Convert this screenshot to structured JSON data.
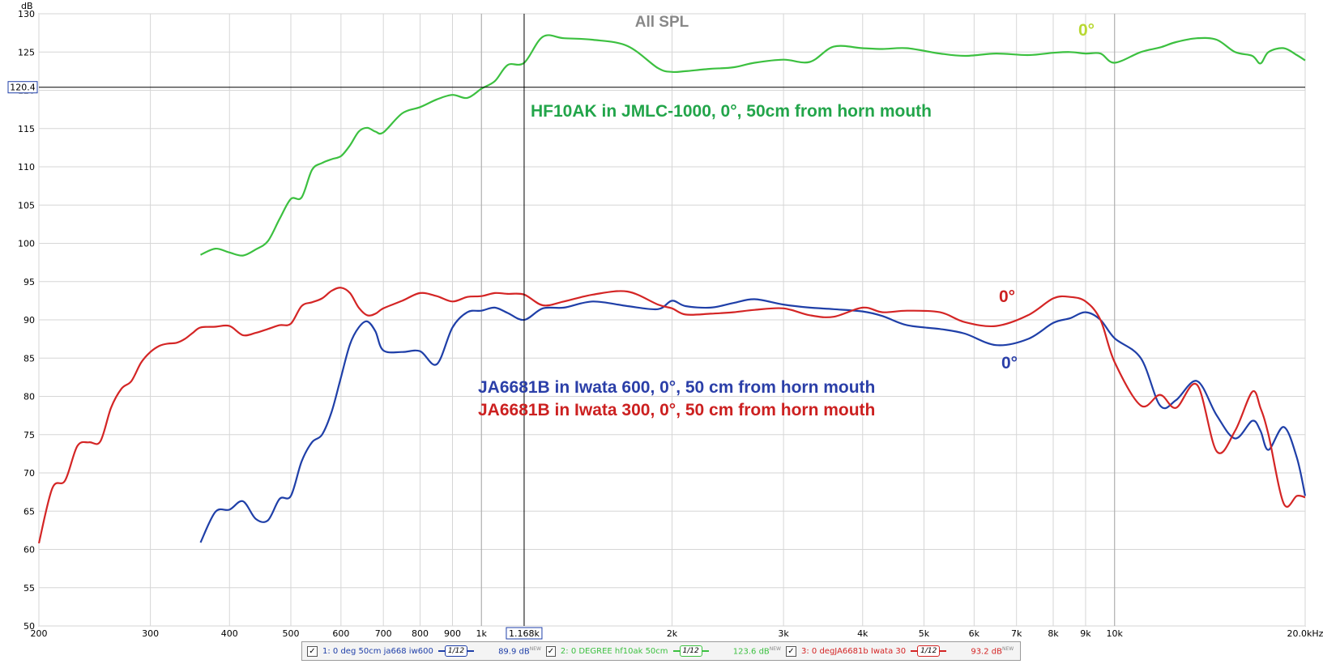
{
  "chart_data": {
    "type": "line",
    "title": "All SPL",
    "ylabel": "dB",
    "xunit": "Hz",
    "xscale": "log",
    "xlim": [
      200,
      20000
    ],
    "ylim": [
      50,
      130
    ],
    "x_ticks": [
      {
        "v": 200,
        "l": "200"
      },
      {
        "v": 300,
        "l": "300"
      },
      {
        "v": 400,
        "l": "400"
      },
      {
        "v": 500,
        "l": "500"
      },
      {
        "v": 600,
        "l": "600"
      },
      {
        "v": 700,
        "l": "700"
      },
      {
        "v": 800,
        "l": "800"
      },
      {
        "v": 900,
        "l": "900"
      },
      {
        "v": 1000,
        "l": "1k"
      },
      {
        "v": 2000,
        "l": "2k"
      },
      {
        "v": 3000,
        "l": "3k"
      },
      {
        "v": 4000,
        "l": "4k"
      },
      {
        "v": 5000,
        "l": "5k"
      },
      {
        "v": 6000,
        "l": "6k"
      },
      {
        "v": 7000,
        "l": "7k"
      },
      {
        "v": 8000,
        "l": "8k"
      },
      {
        "v": 9000,
        "l": "9k"
      },
      {
        "v": 10000,
        "l": "10k"
      },
      {
        "v": 20000,
        "l": "20.0kHz"
      }
    ],
    "y_ticks": [
      50,
      55,
      60,
      65,
      70,
      75,
      80,
      85,
      90,
      95,
      100,
      105,
      110,
      115,
      120,
      125,
      130
    ],
    "grid": true,
    "cursor": {
      "x": 1168,
      "x_label": "1.168k",
      "y": 120.4,
      "y_label": "120.4"
    },
    "series": [
      {
        "name": "2: 0 DEGREE hf10ak 50cm",
        "color": "#3cc040",
        "x": [
          360,
          380,
          400,
          420,
          440,
          460,
          480,
          500,
          520,
          540,
          560,
          580,
          600,
          620,
          640,
          660,
          680,
          700,
          750,
          800,
          850,
          900,
          950,
          1000,
          1050,
          1100,
          1168,
          1250,
          1350,
          1500,
          1700,
          1900,
          2000,
          2100,
          2300,
          2500,
          2700,
          3000,
          3300,
          3600,
          4000,
          4300,
          4700,
          5300,
          5800,
          6500,
          7300,
          8000,
          8500,
          9000,
          9500,
          10000,
          11000,
          11800,
          12500,
          13500,
          14500,
          15500,
          16500,
          17000,
          17500,
          18500,
          19400,
          20000
        ],
        "y": [
          98.5,
          99.3,
          98.8,
          98.4,
          99.2,
          100.3,
          103.2,
          105.8,
          106.0,
          109.6,
          110.5,
          111.0,
          111.4,
          112.8,
          114.6,
          115.1,
          114.6,
          114.5,
          117.0,
          117.8,
          118.8,
          119.4,
          119.0,
          120.2,
          121.2,
          123.3,
          123.6,
          127.0,
          126.8,
          126.6,
          125.8,
          122.9,
          122.4,
          122.5,
          122.8,
          123.0,
          123.6,
          124.0,
          123.7,
          125.7,
          125.5,
          125.4,
          125.5,
          124.8,
          124.5,
          124.8,
          124.6,
          124.9,
          125.0,
          124.8,
          124.8,
          123.6,
          125.0,
          125.6,
          126.3,
          126.8,
          126.6,
          125.0,
          124.5,
          123.5,
          125.0,
          125.5,
          124.6,
          123.9
        ]
      },
      {
        "name": "1: 0 deg 50cm ja668 iw600",
        "color": "#1f3fa8",
        "x": [
          360,
          380,
          400,
          420,
          440,
          460,
          480,
          500,
          520,
          540,
          560,
          580,
          600,
          620,
          640,
          660,
          680,
          700,
          750,
          800,
          850,
          900,
          950,
          1000,
          1050,
          1100,
          1168,
          1250,
          1350,
          1500,
          1700,
          1900,
          2000,
          2100,
          2300,
          2500,
          2700,
          3000,
          3300,
          3600,
          4000,
          4300,
          4700,
          5300,
          5800,
          6500,
          7300,
          8000,
          8500,
          9000,
          9500,
          10000,
          11000,
          11800,
          12500,
          13500,
          14500,
          15500,
          16500,
          17000,
          17500,
          18500,
          19400,
          20000
        ],
        "y": [
          60.9,
          64.9,
          65.2,
          66.3,
          64.0,
          63.8,
          66.6,
          67.0,
          71.5,
          74.0,
          75.0,
          78.0,
          82.5,
          86.8,
          89.0,
          89.8,
          88.5,
          86.0,
          85.8,
          85.9,
          84.2,
          89.0,
          91.0,
          91.2,
          91.6,
          90.9,
          90.0,
          91.5,
          91.6,
          92.4,
          91.8,
          91.4,
          92.5,
          91.8,
          91.6,
          92.2,
          92.7,
          92.0,
          91.6,
          91.4,
          91.1,
          90.5,
          89.3,
          88.8,
          88.2,
          86.7,
          87.5,
          89.6,
          90.2,
          91.0,
          90.0,
          87.6,
          85.0,
          78.8,
          79.5,
          82.0,
          77.5,
          74.5,
          76.8,
          75.5,
          73.0,
          76.0,
          72.0,
          67.0
        ]
      },
      {
        "name": "3: 0 degJA6681b Iwata 30",
        "color": "#d42525",
        "x": [
          200,
          210,
          220,
          230,
          240,
          250,
          260,
          270,
          280,
          290,
          300,
          310,
          320,
          330,
          340,
          350,
          360,
          380,
          400,
          420,
          440,
          460,
          480,
          500,
          520,
          540,
          560,
          580,
          600,
          620,
          640,
          660,
          680,
          700,
          750,
          800,
          850,
          900,
          950,
          1000,
          1050,
          1100,
          1168,
          1250,
          1350,
          1500,
          1700,
          1900,
          2000,
          2100,
          2300,
          2500,
          2700,
          3000,
          3300,
          3600,
          4000,
          4300,
          4700,
          5300,
          5800,
          6500,
          7300,
          8000,
          8500,
          9000,
          9500,
          10000,
          11000,
          11800,
          12500,
          13500,
          14500,
          15500,
          16500,
          17000,
          17500,
          18500,
          19400,
          20000
        ],
        "y": [
          60.8,
          68.0,
          69.0,
          73.5,
          74.0,
          74.1,
          78.5,
          81.0,
          82.0,
          84.4,
          85.8,
          86.6,
          86.9,
          87.0,
          87.5,
          88.3,
          89.0,
          89.1,
          89.2,
          88.0,
          88.3,
          88.8,
          89.3,
          89.5,
          91.8,
          92.3,
          92.8,
          93.8,
          94.2,
          93.5,
          91.6,
          90.6,
          90.8,
          91.5,
          92.5,
          93.5,
          93.1,
          92.4,
          93.0,
          93.1,
          93.5,
          93.4,
          93.3,
          91.9,
          92.4,
          93.3,
          93.7,
          92.0,
          91.5,
          90.7,
          90.8,
          91.0,
          91.3,
          91.5,
          90.6,
          90.4,
          91.6,
          91.0,
          91.2,
          91.0,
          89.7,
          89.2,
          90.6,
          92.8,
          93.0,
          92.4,
          90.0,
          84.5,
          78.8,
          80.2,
          78.5,
          81.5,
          72.8,
          75.5,
          80.6,
          78.5,
          75.0,
          66.0,
          67.0,
          66.8
        ]
      }
    ],
    "annotations": [
      {
        "text": "HF10AK in JMLC-1000, 0°, 50cm from horn mouth",
        "color": "#22a54a"
      },
      {
        "text": "JA6681B in Iwata 600, 0°, 50 cm from horn mouth",
        "color": "#2b3fa8"
      },
      {
        "text": "JA6681B in Iwata 300, 0°, 50 cm from horn mouth",
        "color": "#cc2020"
      },
      {
        "text": "0°",
        "color": "#b8d832"
      },
      {
        "text": "0°",
        "color": "#cc2020"
      },
      {
        "text": "0°",
        "color": "#2b3fa8"
      }
    ]
  },
  "legend": [
    {
      "check": "✓",
      "name": "1: 0 deg 50cm ja668 iw600",
      "smoothing": "1/12",
      "level": "89.9 dB",
      "new": "NEW",
      "color": "#1f3fa8"
    },
    {
      "check": "✓",
      "name": "2: 0 DEGREE hf10ak 50cm",
      "smoothing": "1/12",
      "level": "123.6 dB",
      "new": "NEW",
      "color": "#3cc040"
    },
    {
      "check": "✓",
      "name": "3: 0 degJA6681b Iwata 30",
      "smoothing": "1/12",
      "level": "93.2 dB",
      "new": "NEW",
      "color": "#d42525"
    }
  ]
}
